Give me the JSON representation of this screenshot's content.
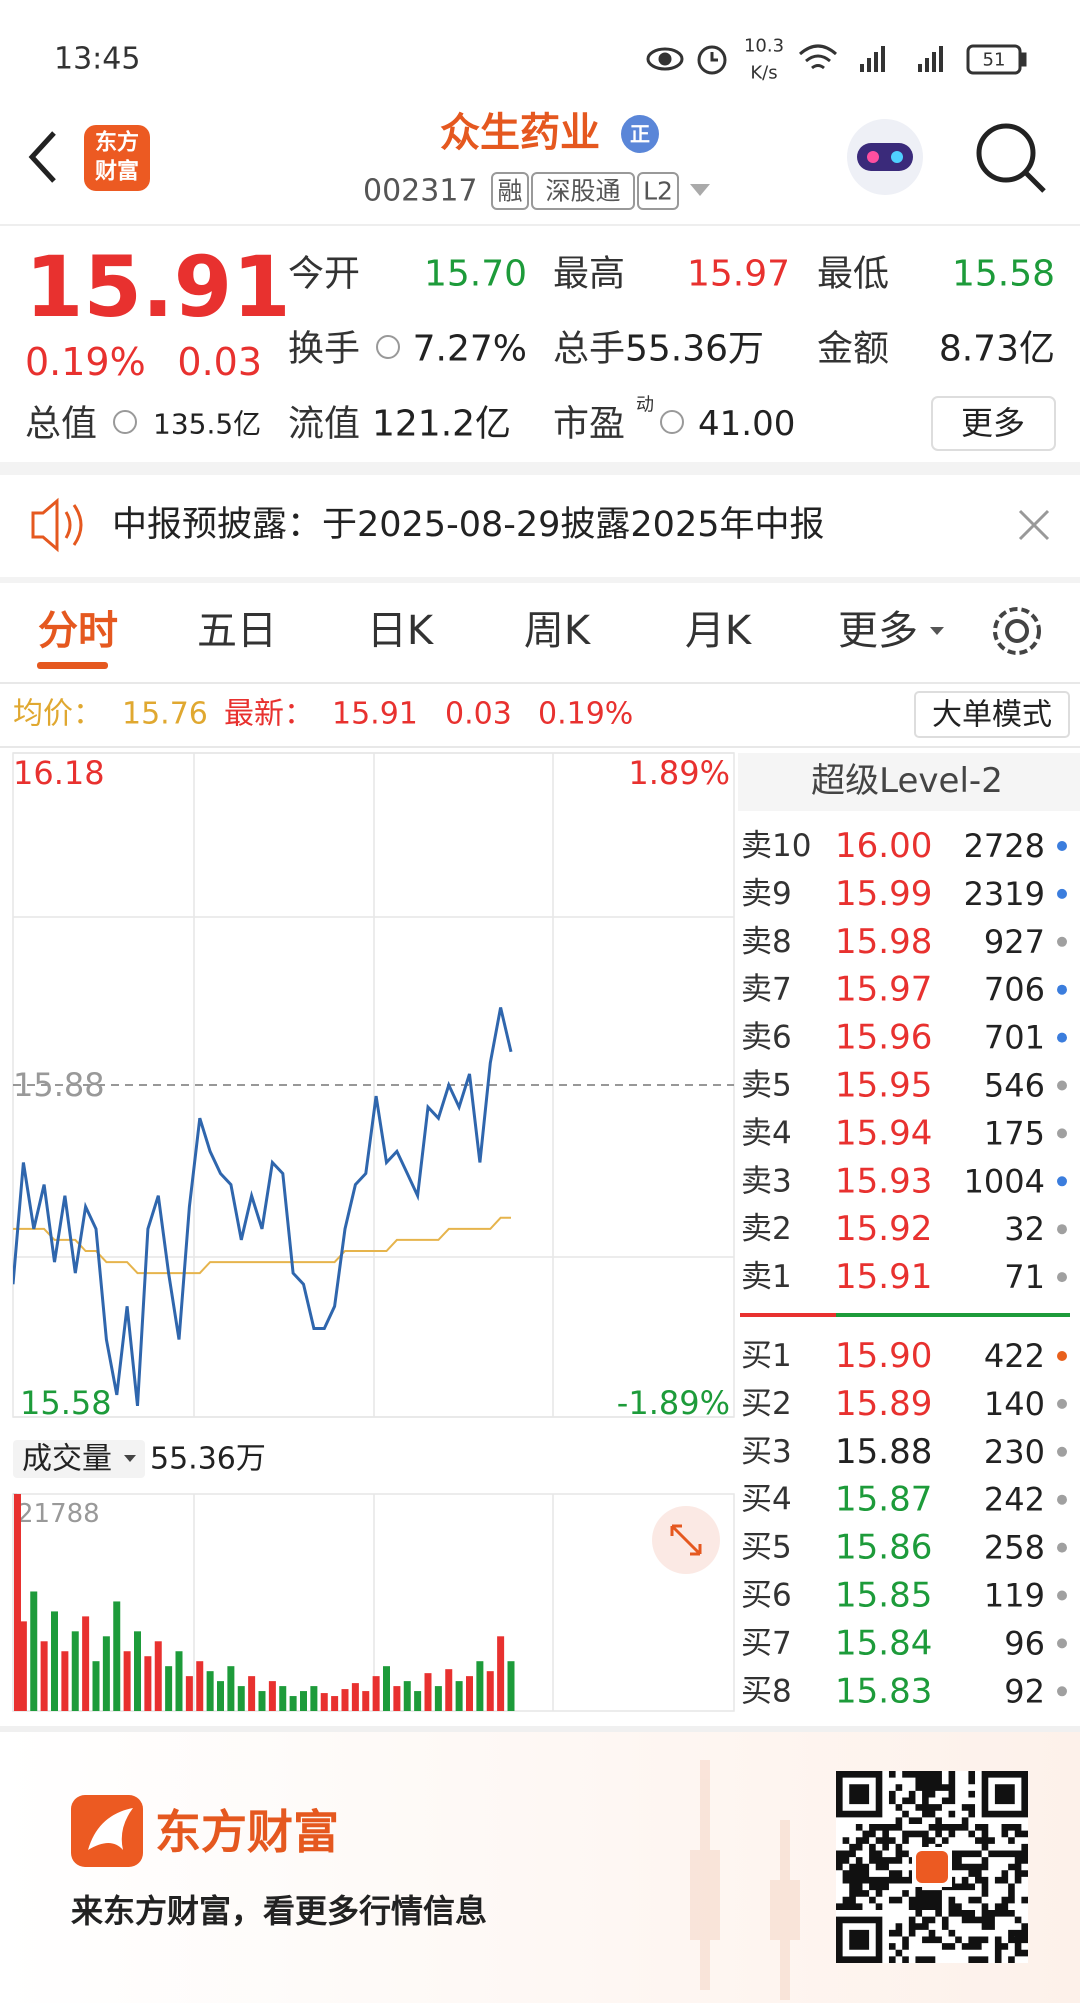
{
  "status_bar": {
    "time": "13:45",
    "net_speed": "10.3",
    "net_unit": "K/s",
    "battery": "51"
  },
  "header": {
    "logo_lines": [
      "东方",
      "财富"
    ],
    "title": "众生药业",
    "badge": "正",
    "code": "002317",
    "tags": [
      "融",
      "深股通",
      "L2"
    ]
  },
  "quote": {
    "price": "15.91",
    "change_pct": "0.19%",
    "change": "0.03",
    "open": {
      "label": "今开",
      "value": "15.70"
    },
    "high": {
      "label": "最高",
      "value": "15.97"
    },
    "low": {
      "label": "最低",
      "value": "15.58"
    },
    "turnover": {
      "label": "换手",
      "value": "7.27%"
    },
    "volume": {
      "label": "总手",
      "value": "55.36万"
    },
    "amount": {
      "label": "金额",
      "value": "8.73亿"
    },
    "total_cap": {
      "label": "总值",
      "value": "135.5亿"
    },
    "float_cap": {
      "label": "流值",
      "value": "121.2亿"
    },
    "pe": {
      "label": "市盈",
      "label_sup": "动",
      "value": "41.00"
    },
    "more_button": "更多"
  },
  "notice": {
    "text": "中报预披露：于2025-08-29披露2025年中报"
  },
  "tabs": [
    "分时",
    "五日",
    "日K",
    "周K",
    "月K",
    "更多"
  ],
  "info_bar": {
    "avg_label": "均价：",
    "avg": "15.76",
    "last_label": "最新：",
    "last": "15.91",
    "change": "0.03",
    "change_pct": "0.19%",
    "mode_button": "大单模式"
  },
  "chart_data": {
    "type": "line",
    "ylim": [
      15.58,
      16.18
    ],
    "yticks": [
      16.18,
      15.88,
      15.58
    ],
    "y2lim": [
      -1.89,
      1.89
    ],
    "y2ticks": [
      {
        "value": 1.89,
        "label": "1.89%"
      },
      {
        "value": -1.89,
        "label": "-1.89%"
      }
    ],
    "series": [
      {
        "color": "#2f66ad",
        "values": [
          15.7,
          15.81,
          15.75,
          15.79,
          15.72,
          15.78,
          15.71,
          15.77,
          15.75,
          15.65,
          15.6,
          15.68,
          15.59,
          15.75,
          15.78,
          15.71,
          15.65,
          15.77,
          15.85,
          15.82,
          15.8,
          15.79,
          15.74,
          15.78,
          15.75,
          15.81,
          15.8,
          15.71,
          15.7,
          15.66,
          15.66,
          15.68,
          15.75,
          15.79,
          15.8,
          15.87,
          15.81,
          15.82,
          15.8,
          15.78,
          15.86,
          15.85,
          15.88,
          15.86,
          15.89,
          15.81,
          15.9,
          15.95,
          15.91
        ]
      },
      {
        "color": "#e6b44c",
        "values": [
          15.75,
          15.75,
          15.75,
          15.75,
          15.74,
          15.74,
          15.74,
          15.73,
          15.73,
          15.72,
          15.72,
          15.72,
          15.71,
          15.71,
          15.71,
          15.71,
          15.71,
          15.71,
          15.71,
          15.72,
          15.72,
          15.72,
          15.72,
          15.72,
          15.72,
          15.72,
          15.72,
          15.72,
          15.72,
          15.72,
          15.72,
          15.72,
          15.73,
          15.73,
          15.73,
          15.73,
          15.73,
          15.74,
          15.74,
          15.74,
          15.74,
          15.74,
          15.75,
          15.75,
          15.75,
          15.75,
          15.75,
          15.76,
          15.76
        ]
      }
    ],
    "volume": {
      "label": "成交量",
      "total": "55.36万",
      "ylim": [
        0,
        21788
      ],
      "yticks": [
        21788
      ],
      "up_color": "#e8312f",
      "down_color": "#1d9b3a",
      "values": [
        21788,
        9000,
        12000,
        7000,
        10000,
        6000,
        8000,
        9500,
        5000,
        7500,
        11000,
        6000,
        8000,
        5500,
        7000,
        4500,
        6000,
        3500,
        5000,
        4000,
        3000,
        4500,
        2500,
        3500,
        2000,
        3000,
        2500,
        1500,
        2000,
        2500,
        1800,
        1500,
        2200,
        2800,
        2000,
        3500,
        4500,
        2500,
        3000,
        2000,
        3800,
        2500,
        4200,
        3000,
        3500,
        5000,
        4000,
        7500,
        5000
      ]
    }
  },
  "order_book": {
    "title": "超级Level-2",
    "asks": [
      {
        "label": "卖10",
        "price": "16.00",
        "volume": "2728",
        "color": "#e8312f",
        "dot": "#3b7ddd"
      },
      {
        "label": "卖9",
        "price": "15.99",
        "volume": "2319",
        "color": "#e8312f",
        "dot": "#3b7ddd"
      },
      {
        "label": "卖8",
        "price": "15.98",
        "volume": "927",
        "color": "#e8312f",
        "dot": "#a0a0a0"
      },
      {
        "label": "卖7",
        "price": "15.97",
        "volume": "706",
        "color": "#e8312f",
        "dot": "#3b7ddd"
      },
      {
        "label": "卖6",
        "price": "15.96",
        "volume": "701",
        "color": "#e8312f",
        "dot": "#3b7ddd"
      },
      {
        "label": "卖5",
        "price": "15.95",
        "volume": "546",
        "color": "#e8312f",
        "dot": "#a0a0a0"
      },
      {
        "label": "卖4",
        "price": "15.94",
        "volume": "175",
        "color": "#e8312f",
        "dot": "#a0a0a0"
      },
      {
        "label": "卖3",
        "price": "15.93",
        "volume": "1004",
        "color": "#e8312f",
        "dot": "#3b7ddd"
      },
      {
        "label": "卖2",
        "price": "15.92",
        "volume": "32",
        "color": "#e8312f",
        "dot": "#a0a0a0"
      },
      {
        "label": "卖1",
        "price": "15.91",
        "volume": "71",
        "color": "#e8312f",
        "dot": "#a0a0a0"
      }
    ],
    "bids": [
      {
        "label": "买1",
        "price": "15.90",
        "volume": "422",
        "color": "#e8312f",
        "dot": "#e8601c"
      },
      {
        "label": "买2",
        "price": "15.89",
        "volume": "140",
        "color": "#e8312f",
        "dot": "#a0a0a0"
      },
      {
        "label": "买3",
        "price": "15.88",
        "volume": "230",
        "color": "#222222",
        "dot": "#a0a0a0"
      },
      {
        "label": "买4",
        "price": "15.87",
        "volume": "242",
        "color": "#1d9b3a",
        "dot": "#a0a0a0"
      },
      {
        "label": "买5",
        "price": "15.86",
        "volume": "258",
        "color": "#1d9b3a",
        "dot": "#a0a0a0"
      },
      {
        "label": "买6",
        "price": "15.85",
        "volume": "119",
        "color": "#1d9b3a",
        "dot": "#a0a0a0"
      },
      {
        "label": "买7",
        "price": "15.84",
        "volume": "96",
        "color": "#1d9b3a",
        "dot": "#a0a0a0"
      },
      {
        "label": "买8",
        "price": "15.83",
        "volume": "92",
        "color": "#1d9b3a",
        "dot": "#a0a0a0"
      }
    ]
  },
  "footer": {
    "brand": "东方财富",
    "slogan": "来东方财富，看更多行情信息"
  }
}
